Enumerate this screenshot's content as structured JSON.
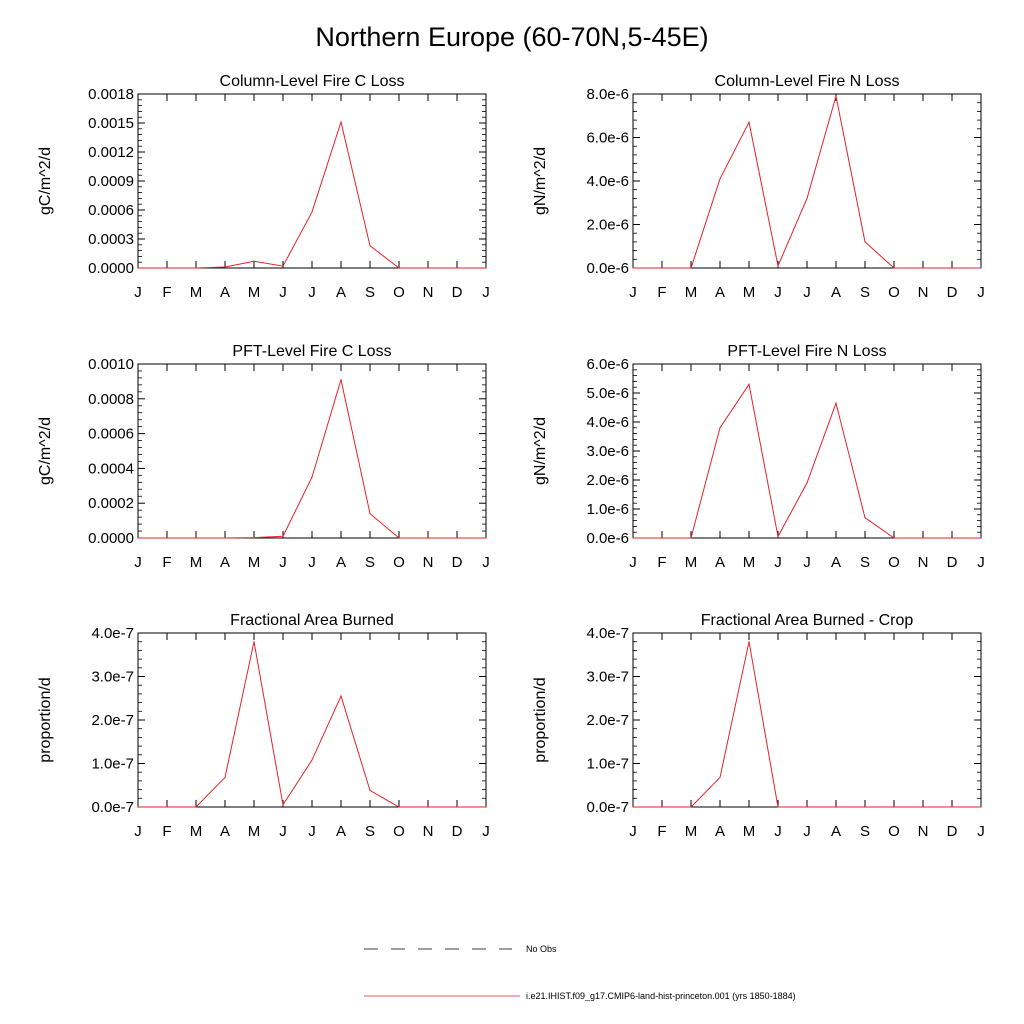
{
  "title": "Northern Europe (60-70N,5-45E)",
  "months": [
    "J",
    "F",
    "M",
    "A",
    "M",
    "J",
    "J",
    "A",
    "S",
    "O",
    "N",
    "D",
    "J"
  ],
  "colors": {
    "model": "#e8202a",
    "obs": "#000000",
    "axis": "#000000"
  },
  "legend": {
    "obs_label": "No Obs",
    "model_label": "i.e21.IHIST.f09_g17.CMIP6-land-hist-princeton.001 (yrs 1850-1884)"
  },
  "chart_data": [
    {
      "type": "line",
      "title": "Column-Level Fire C Loss",
      "ylabel": "gC/m^2/d",
      "ylim": [
        0,
        0.0018
      ],
      "yticks": [
        0,
        0.0003,
        0.0006,
        0.0009,
        0.0012,
        0.0015,
        0.0018
      ],
      "ytick_labels": [
        "0.0000",
        "0.0003",
        "0.0006",
        "0.0009",
        "0.0012",
        "0.0015",
        "0.0018"
      ],
      "x": [
        "J",
        "F",
        "M",
        "A",
        "M",
        "J",
        "J",
        "A",
        "S",
        "O",
        "N",
        "D",
        "J"
      ],
      "series": [
        {
          "name": "i.e21.IHIST.f09_g17.CMIP6-land-hist-princeton.001 (yrs 1850-1884)",
          "values": [
            0,
            0,
            0,
            1e-05,
            7e-05,
            2e-05,
            0.00058,
            0.00151,
            0.00023,
            0,
            0,
            0,
            0
          ]
        }
      ]
    },
    {
      "type": "line",
      "title": "Column-Level Fire N Loss",
      "ylabel": "gN/m^2/d",
      "ylim": [
        0,
        8e-06
      ],
      "yticks": [
        0,
        2e-06,
        4e-06,
        6e-06,
        8e-06
      ],
      "ytick_labels": [
        "0.0e-6",
        "2.0e-6",
        "4.0e-6",
        "6.0e-6",
        "8.0e-6"
      ],
      "x": [
        "J",
        "F",
        "M",
        "A",
        "M",
        "J",
        "J",
        "A",
        "S",
        "O",
        "N",
        "D",
        "J"
      ],
      "series": [
        {
          "name": "i.e21.IHIST.f09_g17.CMIP6-land-hist-princeton.001 (yrs 1850-1884)",
          "values": [
            0,
            0,
            0,
            4.1e-06,
            6.7e-06,
            1e-07,
            3.2e-06,
            7.9e-06,
            1.2e-06,
            0,
            0,
            0,
            0
          ]
        }
      ]
    },
    {
      "type": "line",
      "title": "PFT-Level Fire C Loss",
      "ylabel": "gC/m^2/d",
      "ylim": [
        0,
        0.001
      ],
      "yticks": [
        0,
        0.0002,
        0.0004,
        0.0006,
        0.0008,
        0.001
      ],
      "ytick_labels": [
        "0.0000",
        "0.0002",
        "0.0004",
        "0.0006",
        "0.0008",
        "0.0010"
      ],
      "x": [
        "J",
        "F",
        "M",
        "A",
        "M",
        "J",
        "J",
        "A",
        "S",
        "O",
        "N",
        "D",
        "J"
      ],
      "series": [
        {
          "name": "i.e21.IHIST.f09_g17.CMIP6-land-hist-princeton.001 (yrs 1850-1884)",
          "values": [
            0,
            0,
            0,
            0,
            2e-06,
            1e-05,
            0.00035,
            0.00091,
            0.00014,
            0,
            0,
            0,
            0
          ]
        }
      ]
    },
    {
      "type": "line",
      "title": "PFT-Level Fire N Loss",
      "ylabel": "gN/m^2/d",
      "ylim": [
        0,
        6e-06
      ],
      "yticks": [
        0,
        1e-06,
        2e-06,
        3e-06,
        4e-06,
        5e-06,
        6e-06
      ],
      "ytick_labels": [
        "0.0e-6",
        "1.0e-6",
        "2.0e-6",
        "3.0e-6",
        "4.0e-6",
        "5.0e-6",
        "6.0e-6"
      ],
      "x": [
        "J",
        "F",
        "M",
        "A",
        "M",
        "J",
        "J",
        "A",
        "S",
        "O",
        "N",
        "D",
        "J"
      ],
      "series": [
        {
          "name": "i.e21.IHIST.f09_g17.CMIP6-land-hist-princeton.001 (yrs 1850-1884)",
          "values": [
            0,
            0,
            0,
            3.8e-06,
            5.3e-06,
            5e-08,
            1.9e-06,
            4.65e-06,
            7e-07,
            0,
            0,
            0,
            0
          ]
        }
      ]
    },
    {
      "type": "line",
      "title": "Fractional Area Burned",
      "ylabel": "proportion/d",
      "ylim": [
        0,
        4e-07
      ],
      "yticks": [
        0,
        1e-07,
        2e-07,
        3e-07,
        4e-07
      ],
      "ytick_labels": [
        "0.0e-7",
        "1.0e-7",
        "2.0e-7",
        "3.0e-7",
        "4.0e-7"
      ],
      "x": [
        "J",
        "F",
        "M",
        "A",
        "M",
        "J",
        "J",
        "A",
        "S",
        "O",
        "N",
        "D",
        "J"
      ],
      "series": [
        {
          "name": "i.e21.IHIST.f09_g17.CMIP6-land-hist-princeton.001 (yrs 1850-1884)",
          "values": [
            0,
            0,
            0,
            6.8e-08,
            3.8e-07,
            5e-09,
            1.08e-07,
            2.55e-07,
            3.8e-08,
            0,
            0,
            0,
            0
          ]
        }
      ]
    },
    {
      "type": "line",
      "title": "Fractional Area Burned - Crop",
      "ylabel": "proportion/d",
      "ylim": [
        0,
        4e-07
      ],
      "yticks": [
        0,
        1e-07,
        2e-07,
        3e-07,
        4e-07
      ],
      "ytick_labels": [
        "0.0e-7",
        "1.0e-7",
        "2.0e-7",
        "3.0e-7",
        "4.0e-7"
      ],
      "x": [
        "J",
        "F",
        "M",
        "A",
        "M",
        "J",
        "J",
        "A",
        "S",
        "O",
        "N",
        "D",
        "J"
      ],
      "series": [
        {
          "name": "i.e21.IHIST.f09_g17.CMIP6-land-hist-princeton.001 (yrs 1850-1884)",
          "values": [
            0,
            0,
            0,
            6.8e-08,
            3.8e-07,
            0,
            0,
            0,
            0,
            0,
            0,
            0,
            0
          ]
        }
      ]
    }
  ]
}
